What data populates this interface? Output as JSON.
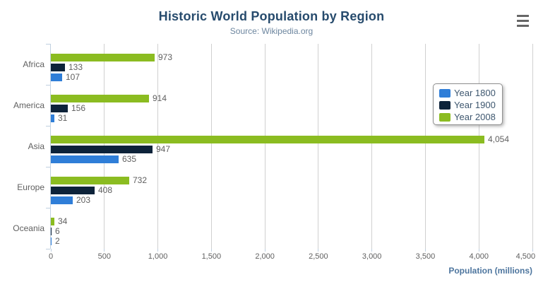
{
  "chart_data": {
    "type": "bar",
    "orientation": "horizontal",
    "title": "Historic World Population by Region",
    "subtitle": "Source: Wikipedia.org",
    "categories": [
      "Africa",
      "America",
      "Asia",
      "Europe",
      "Oceania"
    ],
    "series": [
      {
        "name": "Year 1800",
        "color": "#2f7ed8",
        "values": [
          107,
          31,
          635,
          203,
          2
        ],
        "labels": [
          "107",
          "31",
          "635",
          "203",
          "2"
        ]
      },
      {
        "name": "Year 1900",
        "color": "#0d233a",
        "values": [
          133,
          156,
          947,
          408,
          6
        ],
        "labels": [
          "133",
          "156",
          "947",
          "408",
          "6"
        ]
      },
      {
        "name": "Year 2008",
        "color": "#8bbc21",
        "values": [
          973,
          914,
          4054,
          732,
          34
        ],
        "labels": [
          "973",
          "914",
          "4,054",
          "732",
          "34"
        ]
      }
    ],
    "series_display_order_top_to_bottom": [
      "Year 2008",
      "Year 1900",
      "Year 1800"
    ],
    "xlabel": "Population (millions)",
    "ylabel": "",
    "xlim": [
      0,
      4500
    ],
    "x_ticks": [
      {
        "value": 0,
        "label": "0"
      },
      {
        "value": 500,
        "label": "500"
      },
      {
        "value": 1000,
        "label": "1,000"
      },
      {
        "value": 1500,
        "label": "1,500"
      },
      {
        "value": 2000,
        "label": "2,000"
      },
      {
        "value": 2500,
        "label": "2,500"
      },
      {
        "value": 3000,
        "label": "3,000"
      },
      {
        "value": 3500,
        "label": "3,500"
      },
      {
        "value": 4000,
        "label": "4,000"
      },
      {
        "value": 4500,
        "label": "4,500"
      }
    ],
    "grid": true,
    "legend_position": "right-center"
  },
  "colors": {
    "background": "#ffffff",
    "gridline": "#d0d0d0",
    "axis_line": "#c0d0e0",
    "tick_label": "#606060",
    "data_label": "#606060",
    "title": "#274b6d",
    "subtitle": "#6d869f",
    "axis_title": "#4d759e",
    "legend_text": "#3e576f",
    "legend_border": "#909090",
    "hamburger_icon": "#666666"
  },
  "export_menu": {
    "icon": "hamburger-menu-icon"
  }
}
